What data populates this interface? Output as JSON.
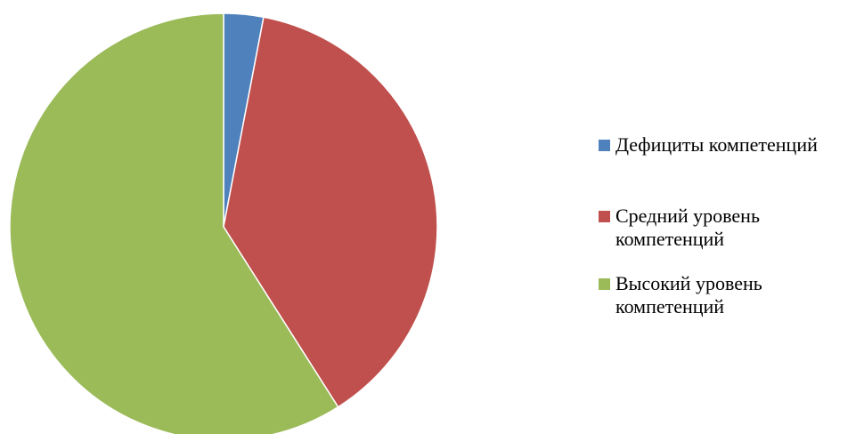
{
  "chart_data": {
    "type": "pie",
    "title": "",
    "slices": [
      {
        "label": "Дефициты компетенций",
        "value": 3,
        "color": "#4f81bd"
      },
      {
        "label": "Средний уровень компетенций",
        "value": 38,
        "color": "#c0504d"
      },
      {
        "label": "Высокий уровень компетенций",
        "value": 59,
        "color": "#9bbb59"
      }
    ],
    "legend_position": "right",
    "start_angle": "top",
    "direction": "clockwise"
  },
  "legend": {
    "items": [
      {
        "label": "Дефициты компетенций",
        "color": "#4f81bd"
      },
      {
        "label": "Средний уровень компетенций",
        "color": "#c0504d"
      },
      {
        "label": "Высокий уровень компетенций",
        "color": "#9bbb59"
      }
    ]
  }
}
